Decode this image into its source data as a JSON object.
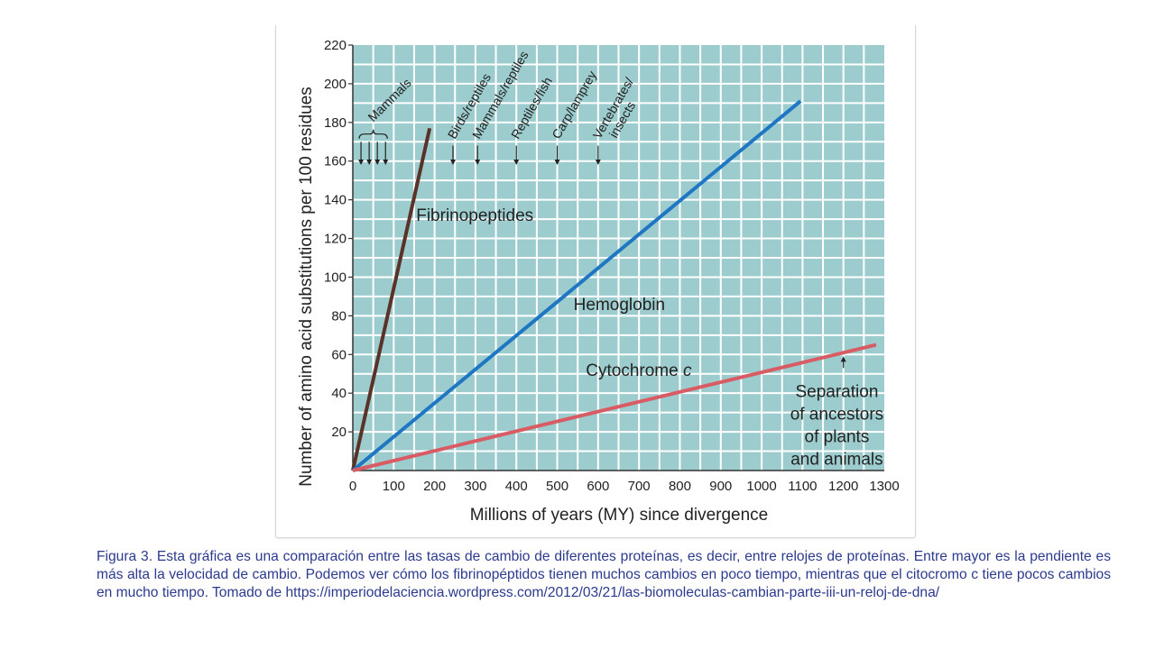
{
  "chart_data": {
    "type": "line",
    "xlabel": "Millions of years (MY) since divergence",
    "ylabel": "Number of amino acid substitutions per 100 residues",
    "xlim": [
      0,
      1300
    ],
    "ylim": [
      0,
      220
    ],
    "x_ticks": [
      "0",
      "100",
      "200",
      "300",
      "400",
      "500",
      "600",
      "700",
      "800",
      "900",
      "1000",
      "1100",
      "1200",
      "1300"
    ],
    "y_ticks": [
      "20",
      "40",
      "60",
      "80",
      "100",
      "120",
      "140",
      "160",
      "180",
      "200",
      "220"
    ],
    "grid": true,
    "background_color": "#9ccccd",
    "grid_color": "#ffffff",
    "series": [
      {
        "name": "Fibrinopeptides",
        "color": "#5a3228",
        "x": [
          0,
          188
        ],
        "y": [
          0,
          177
        ]
      },
      {
        "name": "Hemoglobin",
        "color": "#1f77c4",
        "x": [
          0,
          1095
        ],
        "y": [
          0,
          191
        ]
      },
      {
        "name": "Cytochrome c",
        "color": "#d95b63",
        "x": [
          0,
          1280
        ],
        "y": [
          0,
          65
        ]
      }
    ],
    "divergence_markers": [
      {
        "label": "Mammals",
        "x": [
          20,
          40,
          60,
          80
        ]
      },
      {
        "label": "Birds/reptiles",
        "x": 245
      },
      {
        "label": "Mammals/reptiles",
        "x": 305
      },
      {
        "label": "Reptiles/fish",
        "x": 400
      },
      {
        "label": "Carp/lamprey",
        "x": 500
      },
      {
        "label": "Vertebrates/ insects",
        "x": 600
      }
    ],
    "annotation": {
      "text": "Separation of ancestors of plants and animals",
      "lines": [
        "Separation",
        "of ancestors",
        "of plants",
        "and animals"
      ],
      "arrow_x": 1200
    }
  },
  "caption": "Figura 3. Esta gráfica es una comparación entre las tasas de cambio de diferentes proteínas, es decir, entre relojes de proteínas. Entre mayor es la pendiente es más alta la velocidad de cambio. Podemos ver cómo los fibrinopéptidos tienen muchos cambios en poco tiempo, mientras que el citocromo c tiene pocos cambios en mucho tiempo. Tomado de https://imperiodelaciencia.wordpress.com/2012/03/21/las-biomoleculas-cambian-parte-iii-un-reloj-de-dna/"
}
